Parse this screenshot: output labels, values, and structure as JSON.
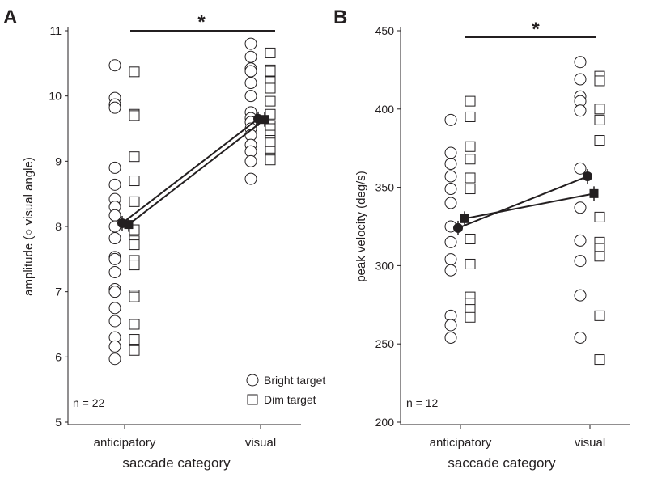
{
  "chart_data": [
    {
      "type": "scatter",
      "panel_label": "A",
      "categories": [
        "anticipatory",
        "visual"
      ],
      "xlabel": "saccade category",
      "ylabel": "amplitude (○ visual angle)",
      "ylim": [
        5,
        11
      ],
      "yticks": [
        "5",
        "6",
        "7",
        "8",
        "9",
        "10",
        "11"
      ],
      "significance": "*",
      "n_label": "n = 22",
      "legend": {
        "position": "bottom-right",
        "entries": [
          {
            "marker": "circle",
            "label": "Bright target"
          },
          {
            "marker": "square",
            "label": "Dim target"
          }
        ]
      },
      "series": [
        {
          "name": "Bright target",
          "marker": "circle",
          "points": {
            "anticipatory": [
              10.47,
              9.97,
              9.87,
              9.82,
              8.9,
              8.64,
              8.42,
              8.3,
              8.17,
              8.0,
              7.82,
              7.53,
              7.5,
              7.3,
              7.04,
              7.0,
              6.75,
              6.55,
              6.3,
              6.16,
              5.97
            ],
            "visual": [
              10.8,
              10.6,
              10.42,
              10.38,
              10.2,
              10.0,
              9.75,
              9.66,
              9.6,
              9.5,
              9.4,
              9.25,
              9.15,
              9.0,
              8.73
            ]
          },
          "mean": {
            "anticipatory": 8.05,
            "visual": 9.65
          }
        },
        {
          "name": "Dim target",
          "marker": "square",
          "points": {
            "anticipatory": [
              10.37,
              9.72,
              9.7,
              9.07,
              8.7,
              8.38,
              7.95,
              7.78,
              7.72,
              7.48,
              7.41,
              6.95,
              6.92,
              6.5,
              6.27,
              6.1
            ],
            "visual": [
              10.66,
              10.4,
              10.38,
              10.22,
              10.12,
              9.92,
              9.72,
              9.55,
              9.5,
              9.4,
              9.32,
              9.28,
              9.15,
              9.05,
              9.02
            ]
          },
          "mean": {
            "anticipatory": 8.03,
            "visual": 9.64
          }
        }
      ]
    },
    {
      "type": "scatter",
      "panel_label": "B",
      "categories": [
        "anticipatory",
        "visual"
      ],
      "xlabel": "saccade category",
      "ylabel": "peak velocity (deg/s)",
      "ylim": [
        200,
        450
      ],
      "yticks": [
        "200",
        "250",
        "300",
        "350",
        "400",
        "450"
      ],
      "significance": "*",
      "n_label": "n = 12",
      "series": [
        {
          "name": "Bright target",
          "marker": "circle",
          "points": {
            "anticipatory": [
              393,
              372,
              365,
              357,
              349,
              340,
              325,
              315,
              304,
              297,
              268,
              262,
              254
            ],
            "visual": [
              430,
              419,
              408,
              405,
              399,
              362,
              337,
              316,
              303,
              281,
              254
            ]
          },
          "mean": {
            "anticipatory": 324,
            "visual": 357
          }
        },
        {
          "name": "Dim target",
          "marker": "square",
          "points": {
            "anticipatory": [
              405,
              395,
              376,
              368,
              356,
              349,
              317,
              301,
              280,
              276,
              272,
              267
            ],
            "visual": [
              421,
              418,
              400,
              393,
              380,
              331,
              315,
              311,
              306,
              268,
              240
            ]
          },
          "mean": {
            "anticipatory": 330,
            "visual": 346
          }
        }
      ]
    }
  ]
}
